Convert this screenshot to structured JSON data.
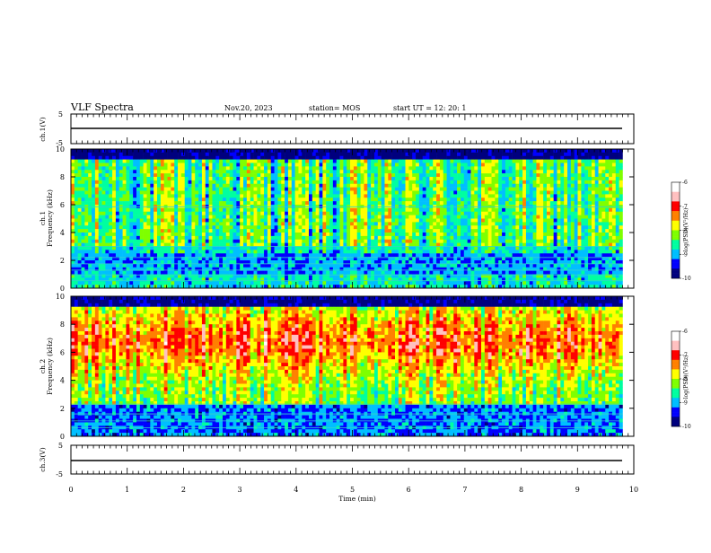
{
  "header": {
    "title": "VLF Spectra",
    "date": "Nov.20, 2023",
    "station": "station= MOS",
    "start_ut": "start  UT  =   12: 20: 1"
  },
  "chart_data": {
    "type": "heatmap",
    "title": "VLF Spectra",
    "xlabel": "Time  (min)",
    "xlim": [
      0,
      10
    ],
    "xticks": [
      "0",
      "1",
      "2",
      "3",
      "4",
      "5",
      "6",
      "7",
      "8",
      "9",
      "10"
    ],
    "panels": [
      {
        "name": "ch.1(V)",
        "ylabel": "ch.1(V)",
        "ylim": [
          -5,
          5
        ],
        "yticks": [
          "5",
          "-5"
        ],
        "trace_level": 0
      },
      {
        "name": "ch.1",
        "ylabel_top": "ch.1",
        "ylabel": "Frequency  (kHz)",
        "ylim": [
          0,
          10
        ],
        "yticks": [
          "0",
          "2",
          "4",
          "6",
          "8",
          "10"
        ],
        "data_end_min": 9.8,
        "colorbar": {
          "label": "log(PSD)(V²/Hz)",
          "range": [
            -10,
            -6
          ],
          "ticks": [
            "-6",
            "-7",
            "-8",
            "-9",
            "-10"
          ]
        }
      },
      {
        "name": "ch.2",
        "ylabel_top": "ch.2",
        "ylabel": "Frequency  (kHz)",
        "ylim": [
          0,
          10
        ],
        "yticks": [
          "0",
          "2",
          "4",
          "6",
          "8",
          "10"
        ],
        "data_end_min": 9.8,
        "colorbar": {
          "label": "log(PSD)(V²/Hz)",
          "range": [
            -10,
            -6
          ],
          "ticks": [
            "-6",
            "-7",
            "-8",
            "-9",
            "-10"
          ]
        }
      },
      {
        "name": "ch.3(V)",
        "ylabel": "ch.3(V)",
        "ylim": [
          -5,
          5
        ],
        "yticks": [
          "5",
          "-5"
        ],
        "trace_level": -1
      }
    ],
    "colormap": [
      "#00007f",
      "#0000ff",
      "#00bfff",
      "#00ffa0",
      "#7fff00",
      "#ffff00",
      "#ff8000",
      "#ff0000",
      "#ffc0c0",
      "#ffffff"
    ],
    "grid": false
  }
}
